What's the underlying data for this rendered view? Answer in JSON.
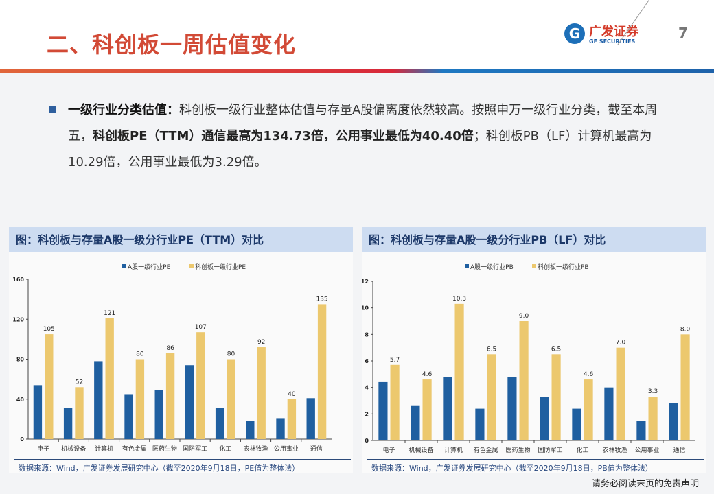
{
  "header": {
    "title": "二、科创板一周估值变化",
    "logo_cn": "广发证券",
    "logo_en": "GF SECURITIES",
    "page": "7"
  },
  "text": {
    "lead": "一级行业分类估值：",
    "p1": "科创板一级行业整体估值与存量A股偏离度依然较高。按照申万一级行业分类，截至本周五，",
    "b1": "科创板PE（TTM）通信最高为134.73倍，公用事业最低为40.40倍",
    "p2": "；科创板PB（LF）计算机最高为10.29倍，公用事业最低为3.29倍。"
  },
  "colors": {
    "a": "#1f5fa0",
    "kcb": "#ecc86e"
  },
  "chart_data": [
    {
      "type": "bar",
      "title": "图：科创板与存量A股一级分行业PE（TTM）对比",
      "categories": [
        "电子",
        "机械设备",
        "计算机",
        "有色金属",
        "医药生物",
        "国防军工",
        "化工",
        "农林牧渔",
        "公用事业",
        "通信"
      ],
      "series": [
        {
          "name": "A股一级行业PE",
          "values": [
            54,
            31,
            78,
            45,
            49,
            74,
            31,
            18,
            21,
            41
          ]
        },
        {
          "name": "科创板一级行业PE",
          "values": [
            105,
            52,
            121,
            80,
            86,
            107,
            80,
            92,
            40,
            135
          ],
          "labels": [
            "105",
            "52",
            "121",
            "80",
            "86",
            "107",
            "80",
            "92",
            "40",
            "135"
          ]
        }
      ],
      "ylim": [
        0,
        160
      ],
      "yticks": [
        0,
        40,
        80,
        120,
        160
      ],
      "legend": "top",
      "source": "数据来源：Wind，广发证券发展研究中心（截至2020年9月18日，PE值为整体法）"
    },
    {
      "type": "bar",
      "title": "图：科创板与存量A股一级分行业PB（LF）对比",
      "categories": [
        "电子",
        "机械设备",
        "计算机",
        "有色金属",
        "医药生物",
        "国防军工",
        "化工",
        "农林牧渔",
        "公用事业",
        "通信"
      ],
      "series": [
        {
          "name": "A股一级行业PB",
          "values": [
            4.4,
            2.6,
            4.8,
            2.4,
            4.8,
            3.3,
            2.4,
            4.0,
            1.5,
            2.8
          ]
        },
        {
          "name": "科创板一级行业PB",
          "values": [
            5.7,
            4.6,
            10.3,
            6.5,
            9.0,
            6.5,
            4.6,
            7.0,
            3.3,
            8.0
          ],
          "labels": [
            "5.7",
            "4.6",
            "10.3",
            "6.5",
            "9.0",
            "6.5",
            "4.6",
            "7.0",
            "3.3",
            "8.0"
          ]
        }
      ],
      "ylim": [
        0,
        12
      ],
      "yticks": [
        0,
        2,
        4,
        6,
        8,
        10,
        12
      ],
      "legend": "top",
      "source": "数据来源：Wind，广发证券发展研究中心（截至2020年9月18日，PB值为整体法）"
    }
  ],
  "footer": {
    "disclaimer": "请务必阅读末页的免责声明"
  }
}
